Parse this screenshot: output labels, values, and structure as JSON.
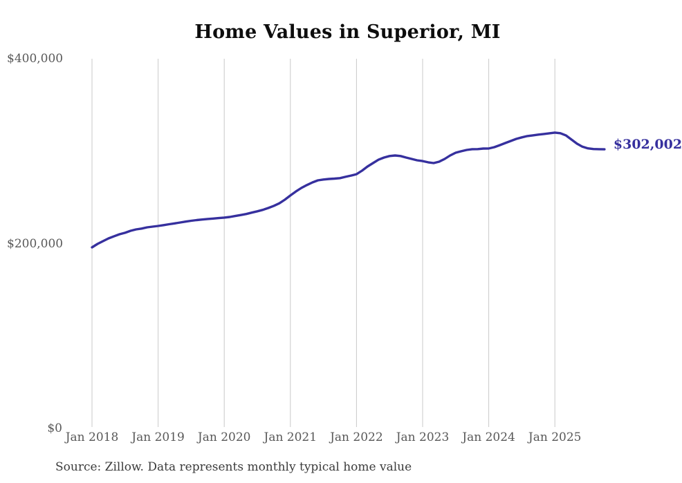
{
  "source_note": "Source: Zillow. Data represents monthly typical home value",
  "colors": {
    "line": "#36309e",
    "grid": "#c9c9c9",
    "axis_text": "#585858",
    "title_text": "#0d0d0d",
    "source_text": "#3b3b3b",
    "end_label_text": "#36309e"
  },
  "chart_data": {
    "type": "line",
    "title": "Home Values in Superior, MI",
    "xlabel": "",
    "ylabel": "",
    "ylim": [
      0,
      400000
    ],
    "grid": "vertical-only",
    "legend_position": "none",
    "x_tick_labels": [
      "Jan 2018",
      "Jan 2019",
      "Jan 2020",
      "Jan 2021",
      "Jan 2022",
      "Jan 2023",
      "Jan 2024",
      "Jan 2025"
    ],
    "y_ticks": [
      {
        "label": "$400,000",
        "value": 400000
      },
      {
        "label": "$200,000",
        "value": 200000
      },
      {
        "label": "$0",
        "value": 0
      }
    ],
    "x_start_month": "2018-01",
    "x_frequency": "monthly",
    "series": [
      {
        "name": "Typical home value",
        "color": "#36309e",
        "values": [
          195900,
          199600,
          202600,
          205600,
          207900,
          210100,
          211700,
          213800,
          215300,
          216200,
          217600,
          218300,
          219100,
          220000,
          220900,
          221800,
          222800,
          223800,
          224700,
          225400,
          226000,
          226600,
          227100,
          227600,
          228100,
          228800,
          229800,
          230900,
          232000,
          233500,
          234900,
          236500,
          238500,
          240800,
          243600,
          247500,
          252000,
          256400,
          260200,
          263300,
          266200,
          268400,
          269300,
          269900,
          270300,
          270800,
          272200,
          273600,
          275100,
          278900,
          283400,
          287100,
          290800,
          293100,
          294700,
          295300,
          294700,
          293100,
          291600,
          290100,
          289300,
          287900,
          287100,
          288600,
          291600,
          295300,
          298300,
          299900,
          301300,
          302100,
          302200,
          302800,
          302900,
          304300,
          306500,
          308800,
          311000,
          313300,
          314900,
          316300,
          317100,
          317900,
          318600,
          319300,
          320100,
          319400,
          317100,
          312600,
          308100,
          304800,
          303000,
          302300,
          302100,
          302002
        ]
      }
    ],
    "final_value": 302002,
    "final_value_label": "$302,002"
  }
}
